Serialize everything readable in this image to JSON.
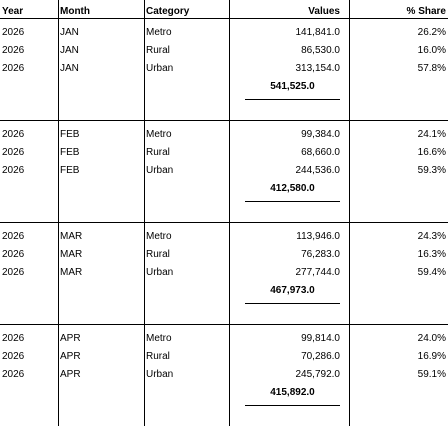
{
  "headers": {
    "year": "Year",
    "month": "Month",
    "category": "Category",
    "values": "Values",
    "share": "% Share"
  },
  "groups": [
    {
      "rows": [
        {
          "year": "2026",
          "month": "JAN",
          "category": "Metro",
          "value": "141,841.0",
          "share": "26.2%"
        },
        {
          "year": "2026",
          "month": "JAN",
          "category": "Rural",
          "value": "86,530.0",
          "share": "16.0%"
        },
        {
          "year": "2026",
          "month": "JAN",
          "category": "Urban",
          "value": "313,154.0",
          "share": "57.8%"
        }
      ],
      "total": "541,525.0"
    },
    {
      "rows": [
        {
          "year": "2026",
          "month": "FEB",
          "category": "Metro",
          "value": "99,384.0",
          "share": "24.1%"
        },
        {
          "year": "2026",
          "month": "FEB",
          "category": "Rural",
          "value": "68,660.0",
          "share": "16.6%"
        },
        {
          "year": "2026",
          "month": "FEB",
          "category": "Urban",
          "value": "244,536.0",
          "share": "59.3%"
        }
      ],
      "total": "412,580.0"
    },
    {
      "rows": [
        {
          "year": "2026",
          "month": "MAR",
          "category": "Metro",
          "value": "113,946.0",
          "share": "24.3%"
        },
        {
          "year": "2026",
          "month": "MAR",
          "category": "Rural",
          "value": "76,283.0",
          "share": "16.3%"
        },
        {
          "year": "2026",
          "month": "MAR",
          "category": "Urban",
          "value": "277,744.0",
          "share": "59.4%"
        }
      ],
      "total": "467,973.0"
    },
    {
      "rows": [
        {
          "year": "2026",
          "month": "APR",
          "category": "Metro",
          "value": "99,814.0",
          "share": "24.0%"
        },
        {
          "year": "2026",
          "month": "APR",
          "category": "Rural",
          "value": "70,286.0",
          "share": "16.9%"
        },
        {
          "year": "2026",
          "month": "APR",
          "category": "Urban",
          "value": "245,792.0",
          "share": "59.1%"
        }
      ],
      "total": "415,892.0"
    }
  ]
}
